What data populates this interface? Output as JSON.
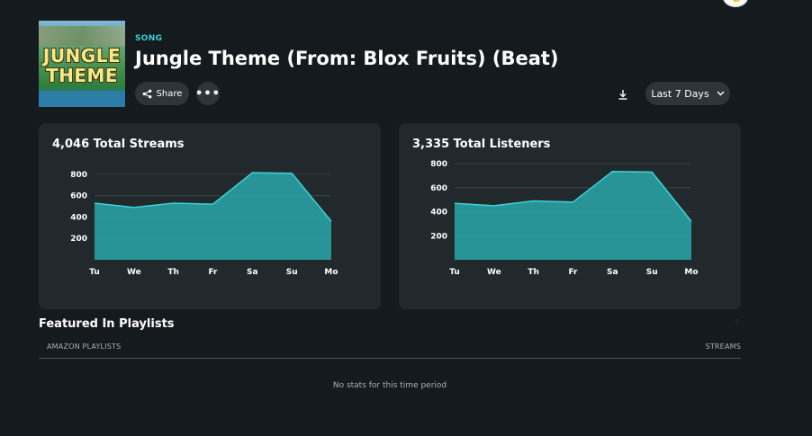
{
  "header": {
    "type_label": "SONG",
    "title": "Jungle Theme (From: Blox Fruits) (Beat)",
    "cover_text": "JUNGLE THEME",
    "share_label": "Share",
    "more_label": "•••",
    "period_label": "Last 7 Days"
  },
  "cards": {
    "streams": {
      "title": "4,046 Total Streams"
    },
    "listeners": {
      "title": "3,335 Total Listeners"
    }
  },
  "chart_data": [
    {
      "type": "area",
      "title": "4,046 Total Streams",
      "categories": [
        "Tu",
        "We",
        "Th",
        "Fr",
        "Sa",
        "Su",
        "Mo"
      ],
      "values": [
        530,
        490,
        530,
        520,
        815,
        810,
        360
      ],
      "yticks": [
        200,
        400,
        600,
        800
      ],
      "ylim": [
        0,
        900
      ],
      "grid": true,
      "color": "#2aa7aa",
      "line_color": "#3ed3d6"
    },
    {
      "type": "area",
      "title": "3,335 Total Listeners",
      "categories": [
        "Tu",
        "We",
        "Th",
        "Fr",
        "Sa",
        "Su",
        "Mo"
      ],
      "values": [
        470,
        450,
        490,
        480,
        735,
        730,
        320
      ],
      "yticks": [
        200,
        400,
        600,
        800
      ],
      "ylim": [
        0,
        800
      ],
      "grid": true,
      "color": "#2aa7aa",
      "line_color": "#3ed3d6"
    }
  ],
  "featured": {
    "title": "Featured In Playlists",
    "col_left": "AMAZON PLAYLISTS",
    "col_right": "STREAMS",
    "empty_message": "No stats for this time period"
  },
  "icons": {
    "share": "share-icon",
    "more": "more-icon",
    "download": "download-icon",
    "chevron": "chevron-down-icon"
  },
  "colors": {
    "background": "#141a1d",
    "card": "#22292c",
    "accent": "#3ad1d3",
    "button": "#2e3538"
  }
}
